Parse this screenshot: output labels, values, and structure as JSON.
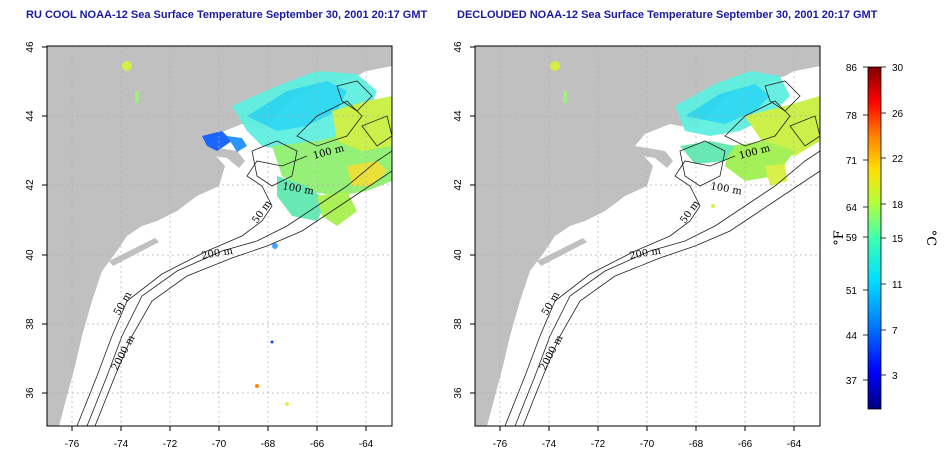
{
  "maps": [
    {
      "title": "RU COOL NOAA-12 Sea Surface Temperature September 30, 2001 20:17 GMT",
      "contour_labels": [
        "100 m",
        "100 m",
        "50 m",
        "200 m",
        "50 m",
        "2000 m"
      ]
    },
    {
      "title": "DECLOUDED NOAA-12 Sea Surface Temperature September 30, 2001 20:17 GMT",
      "contour_labels": [
        "100 m",
        "100 m",
        "50 m",
        "200 m",
        "50 m",
        "2000 m"
      ]
    }
  ],
  "axes": {
    "x_ticks": [
      "-76",
      "-74",
      "-72",
      "-70",
      "-68",
      "-66",
      "-64"
    ],
    "y_ticks": [
      "36",
      "38",
      "40",
      "42",
      "44",
      "46"
    ],
    "lon_range": [
      -77,
      -63
    ],
    "lat_range": [
      35,
      46
    ]
  },
  "colorbar": {
    "fahrenheit_ticks": [
      "86",
      "78",
      "71",
      "64",
      "59",
      "51",
      "44",
      "37"
    ],
    "celsius_ticks": [
      "30",
      "26",
      "22",
      "18",
      "15",
      "11",
      "7",
      "3"
    ],
    "left_unit": "°F",
    "right_unit": "°C",
    "celsius_range": [
      0,
      30
    ],
    "colors": [
      "#00007f",
      "#0000ff",
      "#0080ff",
      "#00e0ff",
      "#40ffb0",
      "#b0ff40",
      "#ffe000",
      "#ff8000",
      "#ff0000",
      "#7f0000"
    ]
  },
  "colors": {
    "land": "#c0c0c0",
    "ocean": "#ffffff",
    "title": "#1a1aa0"
  }
}
